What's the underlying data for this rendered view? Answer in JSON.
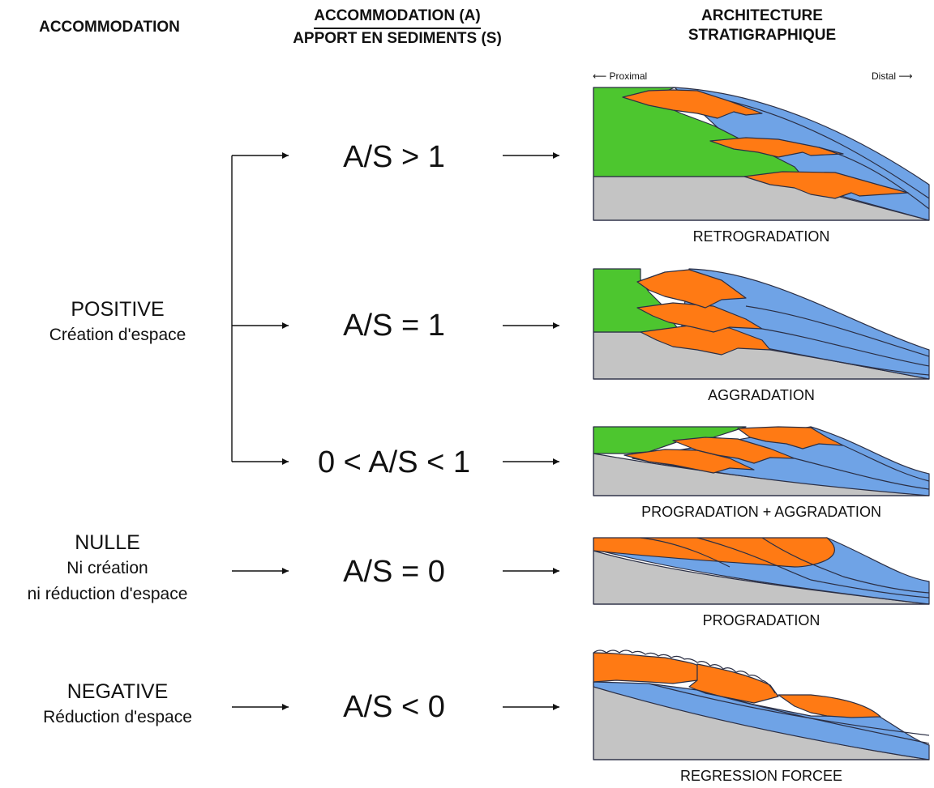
{
  "headers": {
    "accommodation": "ACCOMMODATION",
    "ratio_top": "ACCOMMODATION (A)",
    "ratio_bottom": "APPORT EN SEDIMENTS (S)",
    "architecture_line1": "ARCHITECTURE",
    "architecture_line2": "STRATIGRAPHIQUE"
  },
  "categories": {
    "positive": {
      "title": "POSITIVE",
      "subtitle": "Création d'espace"
    },
    "nulle": {
      "title": "NULLE",
      "line2": "Ni création",
      "line3": "ni réduction d'espace"
    },
    "negative": {
      "title": "NEGATIVE",
      "subtitle": "Réduction d'espace"
    }
  },
  "ratios": [
    "A/S > 1",
    "A/S = 1",
    "0 < A/S < 1",
    "A/S = 0",
    "A/S < 0"
  ],
  "patterns": [
    "RETROGRADATION",
    "AGGRADATION",
    "PROGRADATION + AGGRADATION",
    "PROGRADATION",
    "REGRESSION FORCEE"
  ],
  "direction": {
    "proximal": "Proximal",
    "distal": "Distal"
  },
  "colors": {
    "green": "#4dc62f",
    "orange": "#ff7a14",
    "blue": "#6fa3e6",
    "grey": "#c4c4c4",
    "outline": "#2b2f45"
  }
}
